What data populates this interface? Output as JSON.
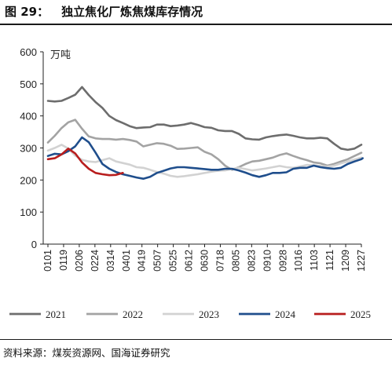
{
  "figure": {
    "number": "图 29：",
    "title": "独立焦化厂炼焦煤库存情况",
    "source": "资料来源：煤炭资源网、国海证券研究"
  },
  "chart_data": {
    "type": "line",
    "unit": "万吨",
    "ylim": [
      0,
      600
    ],
    "yticks": [
      0,
      100,
      200,
      300,
      400,
      500,
      600
    ],
    "xticks": [
      "0101",
      "0119",
      "0206",
      "0224",
      "0314",
      "0401",
      "0419",
      "0507",
      "0525",
      "0612",
      "0630",
      "0718",
      "0805",
      "0823",
      "0910",
      "0928",
      "1016",
      "1103",
      "1121",
      "1209",
      "1227"
    ],
    "x_start_tick": "0101",
    "x_end_tick": "1227",
    "grid": false,
    "legend_position": "bottom",
    "series": [
      {
        "name": "2021",
        "color": "#6d6d6d",
        "values": [
          447,
          445,
          447,
          456,
          466,
          490,
          465,
          443,
          425,
          400,
          387,
          378,
          368,
          362,
          364,
          365,
          373,
          373,
          368,
          370,
          373,
          378,
          372,
          365,
          363,
          355,
          353,
          353,
          344,
          330,
          327,
          326,
          333,
          337,
          340,
          342,
          338,
          333,
          330,
          330,
          332,
          330,
          313,
          298,
          294,
          298,
          310
        ]
      },
      {
        "name": "2022",
        "color": "#a3a3a3",
        "values": [
          317,
          338,
          362,
          380,
          388,
          360,
          336,
          330,
          328,
          328,
          326,
          328,
          325,
          320,
          305,
          310,
          315,
          313,
          307,
          297,
          298,
          300,
          302,
          288,
          280,
          265,
          245,
          232,
          240,
          250,
          258,
          260,
          265,
          270,
          278,
          283,
          275,
          268,
          262,
          255,
          252,
          245,
          250,
          258,
          265,
          275,
          285
        ]
      },
      {
        "name": "2023",
        "color": "#d2d2d2",
        "values": [
          292,
          300,
          310,
          298,
          276,
          263,
          258,
          256,
          262,
          268,
          258,
          253,
          248,
          240,
          238,
          232,
          225,
          220,
          213,
          210,
          212,
          215,
          218,
          222,
          226,
          229,
          230,
          234,
          238,
          234,
          230,
          233,
          236,
          240,
          244,
          240,
          238,
          242,
          247,
          246,
          244,
          242,
          245,
          252,
          258,
          264,
          270
        ]
      },
      {
        "name": "2024",
        "color": "#1f4e8c",
        "values": [
          275,
          282,
          280,
          290,
          305,
          333,
          318,
          285,
          250,
          235,
          225,
          218,
          213,
          208,
          204,
          210,
          222,
          229,
          236,
          240,
          240,
          238,
          236,
          234,
          232,
          232,
          235,
          235,
          230,
          223,
          215,
          210,
          215,
          222,
          222,
          224,
          235,
          238,
          238,
          245,
          240,
          237,
          235,
          238,
          250,
          258,
          265,
          268
        ]
      },
      {
        "name": "2025",
        "color": "#b81d1d",
        "values": [
          265,
          268,
          280,
          298,
          283,
          255,
          235,
          222,
          218,
          215,
          216,
          222
        ]
      }
    ]
  }
}
